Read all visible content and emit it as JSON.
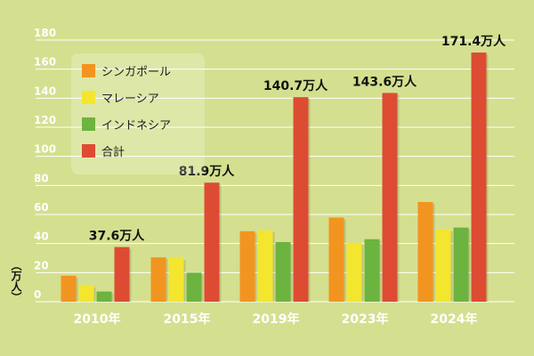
{
  "chart_data": {
    "type": "bar",
    "categories": [
      "2010年",
      "2015年",
      "2019年",
      "2023年",
      "2024年"
    ],
    "series": [
      {
        "name": "シンガポール",
        "color": "#f29420",
        "values": [
          17.9,
          30.5,
          48.5,
          57.9,
          68.6
        ]
      },
      {
        "name": "マレーシア",
        "color": "#f4e62e",
        "values": [
          11.0,
          30.0,
          49.0,
          40.5,
          49.6
        ]
      },
      {
        "name": "インドネシア",
        "color": "#6db33f",
        "values": [
          7.0,
          20.0,
          41.0,
          43.0,
          51.0
        ]
      },
      {
        "name": "合計",
        "color": "#de4b33",
        "values": [
          37.6,
          81.9,
          140.7,
          143.6,
          171.4
        ]
      }
    ],
    "data_labels": [
      "37.6万人",
      "81.9万人",
      "140.7万人",
      "143.6万人",
      "171.4万人"
    ],
    "ylabel": "（万人）",
    "yticks": [
      0,
      20,
      40,
      60,
      80,
      100,
      120,
      140,
      160,
      180
    ],
    "ylim": [
      0,
      180
    ],
    "grid": true,
    "legend_position": "top-left",
    "colors": {
      "background": "#d4e08f",
      "grid": "#ffffff",
      "text": "#111111"
    }
  }
}
